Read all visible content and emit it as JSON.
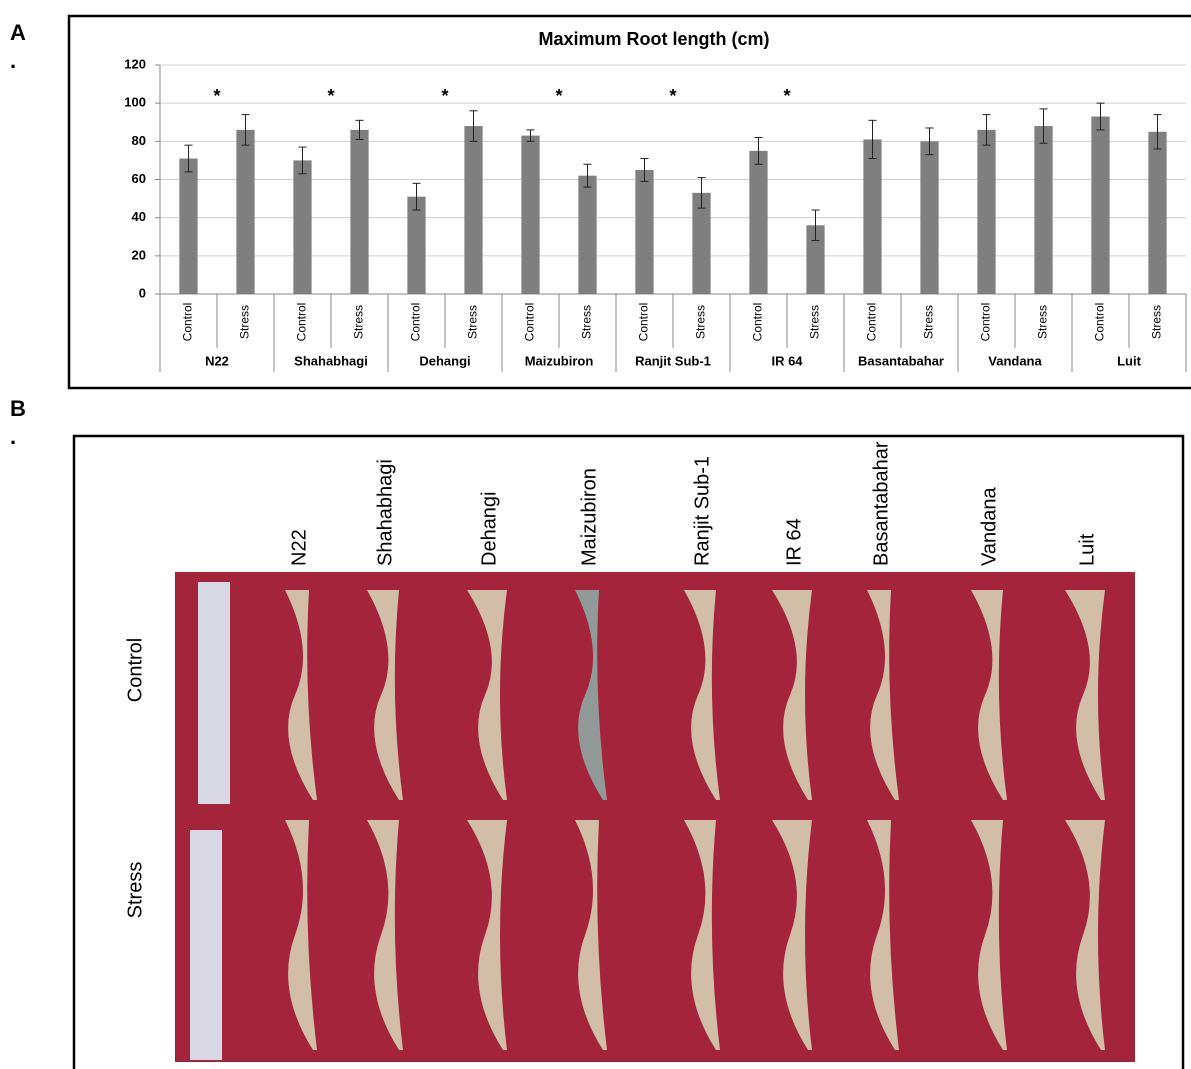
{
  "panel_labels": [
    {
      "letter": "A",
      "dot": "."
    },
    {
      "letter": "B",
      "dot": "."
    }
  ],
  "chart_data": {
    "type": "bar",
    "title": "Maximum Root length (cm)",
    "groups": [
      "N22",
      "Shahabhagi",
      "Dehangi",
      "Maizubiron",
      "Ranjit Sub-1",
      "IR 64",
      "Basantabahar",
      "Vandana",
      "Luit"
    ],
    "significance": [
      "*",
      "*",
      "*",
      "*",
      "*",
      "*",
      null,
      null,
      null
    ],
    "categories": [
      "Control",
      "Stress",
      "Control",
      "Stress",
      "Control",
      "Stress",
      "Control",
      "Stress",
      "Control",
      "Stress",
      "Control",
      "Stress",
      "Control",
      "Stress",
      "Control",
      "Stress",
      "Control",
      "Stress"
    ],
    "values": [
      71,
      86,
      70,
      86,
      51,
      88,
      83,
      62,
      65,
      53,
      75,
      36,
      81,
      80,
      86,
      88,
      93,
      85
    ],
    "errors": [
      7,
      8,
      7,
      5,
      7,
      8,
      3,
      6,
      6,
      8,
      7,
      8,
      10,
      7,
      8,
      9,
      7,
      9
    ],
    "color": "#7f7f7f",
    "ylim": [
      0,
      120
    ],
    "yticks": [
      0,
      20,
      40,
      60,
      80,
      100,
      120
    ],
    "grid": true
  },
  "panel_b": {
    "columns": [
      "N22",
      "Shahabhagi",
      "Dehangi",
      "Maizubiron",
      "Ranjit Sub-1",
      "IR 64",
      "Basantabahar",
      "Vandana",
      "Luit"
    ],
    "rows": [
      "Control",
      "Stress"
    ]
  }
}
